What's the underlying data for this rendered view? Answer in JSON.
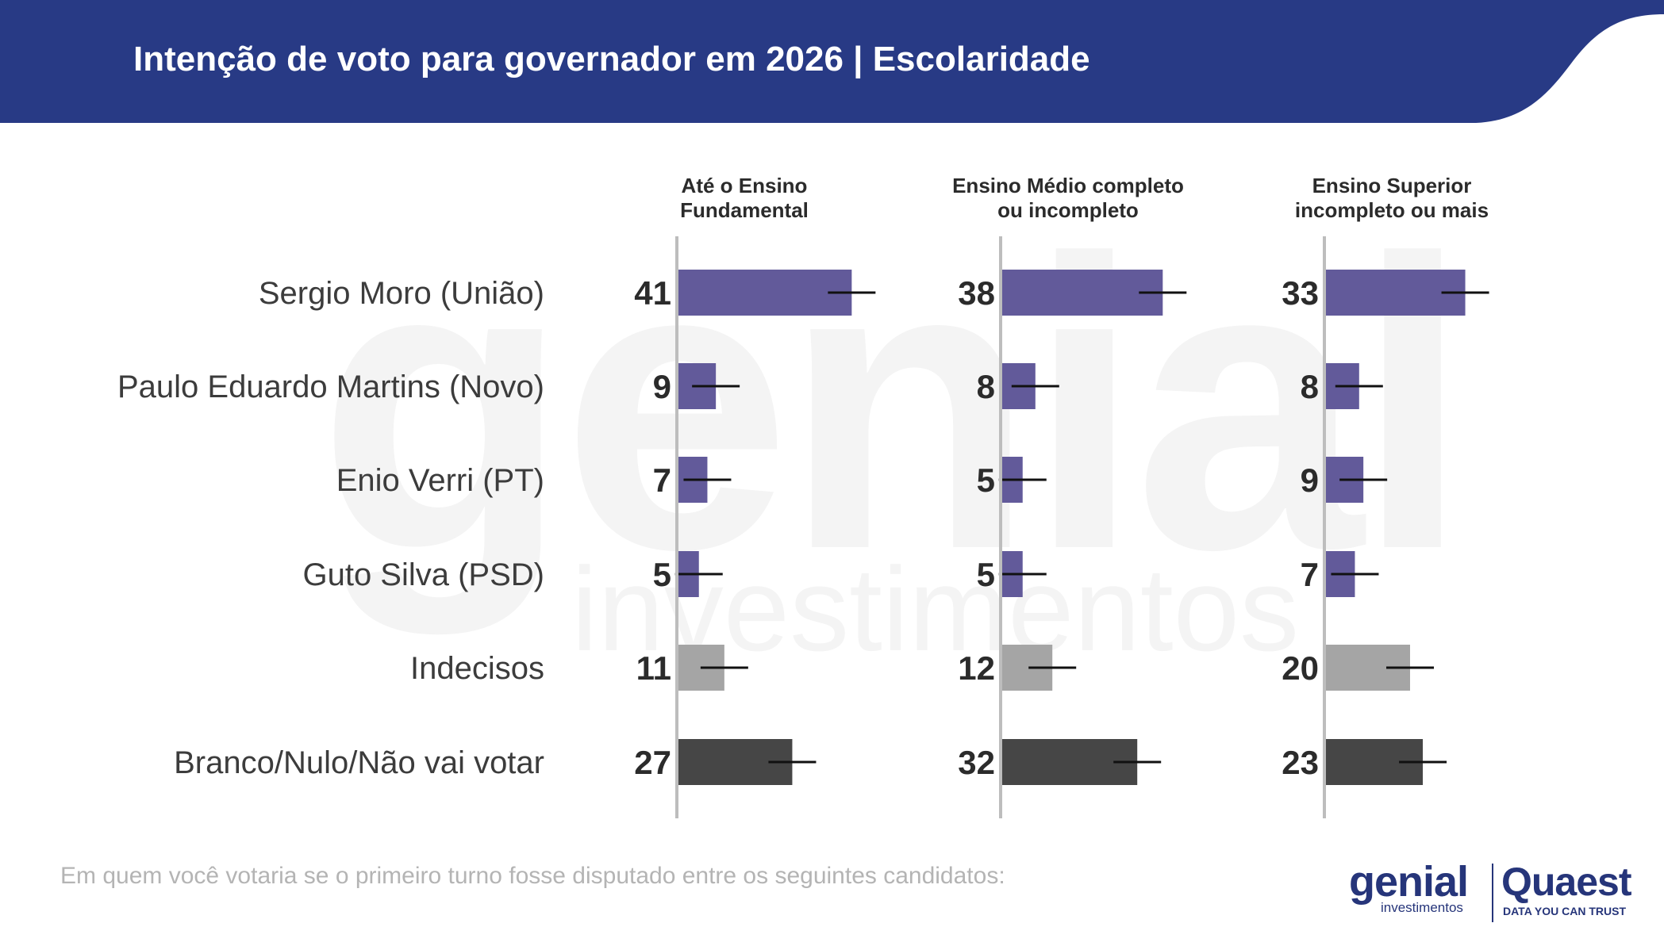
{
  "header": {
    "title": "Intenção de voto para governador em 2026 | Escolaridade",
    "background_color": "#283a85"
  },
  "watermark": {
    "brand": "genial",
    "sub": "investimentos"
  },
  "chart_data": {
    "type": "bar",
    "orientation": "horizontal",
    "panels": [
      {
        "title_lines": [
          "Até o Ensino",
          "Fundamental"
        ],
        "values": [
          41,
          9,
          7,
          5,
          11,
          27
        ]
      },
      {
        "title_lines": [
          "Ensino Médio completo",
          "ou incompleto"
        ],
        "values": [
          38,
          8,
          5,
          5,
          12,
          32
        ]
      },
      {
        "title_lines": [
          "Ensino Superior",
          "incompleto ou mais"
        ],
        "values": [
          33,
          8,
          9,
          7,
          20,
          23
        ]
      }
    ],
    "categories": [
      "Sergio Moro (União)",
      "Paulo Eduardo Martins (Novo)",
      "Enio Verri (PT)",
      "Guto Silva (PSD)",
      "Indecisos",
      "Branco/Nulo/Não vai votar"
    ],
    "category_colors": [
      "#625a9a",
      "#625a9a",
      "#625a9a",
      "#625a9a",
      "#a5a5a5",
      "#464646"
    ],
    "error_bars": true,
    "grid": false,
    "legend": "none"
  },
  "footnote": "Em quem você votaria se o primeiro turno fosse disputado entre os seguintes candidatos:",
  "logos": {
    "genial": "genial",
    "genial_sub": "investimentos",
    "quaest": "Quaest",
    "quaest_sub": "DATA YOU CAN TRUST"
  }
}
